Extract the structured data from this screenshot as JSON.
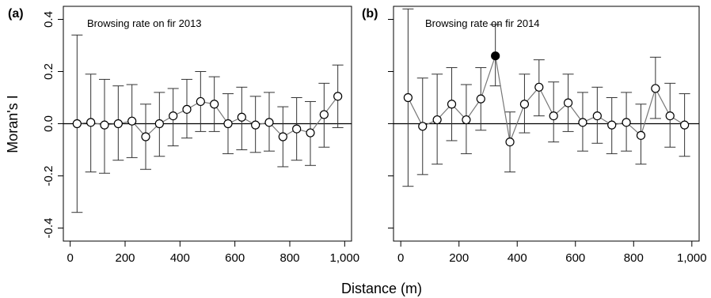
{
  "figure": {
    "xlabel": "Distance (m)",
    "ylabel": "Moran's I"
  },
  "chart_data": [
    {
      "type": "line",
      "panel_label": "(a)",
      "title": "Browsing rate on fir 2013",
      "xlabel": "Distance (m)",
      "ylabel": "Moran's I",
      "xlim": [
        0,
        1000
      ],
      "ylim": [
        -0.45,
        0.45
      ],
      "x_ticks": [
        0,
        200,
        400,
        600,
        800,
        1000
      ],
      "x_tick_labels": [
        "0",
        "200",
        "400",
        "600",
        "800",
        "1,000"
      ],
      "y_ticks": [
        -0.4,
        -0.2,
        0.0,
        0.2,
        0.4
      ],
      "y_tick_labels": [
        "-0.4",
        "-0.2",
        "0.0",
        "0.2",
        "0.4"
      ],
      "reference_line": 0,
      "grid": false,
      "series": [
        {
          "x": [
            25,
            75,
            125,
            175,
            225,
            275,
            325,
            375,
            425,
            475,
            525,
            575,
            625,
            675,
            725,
            775,
            825,
            875,
            925,
            975
          ],
          "y": [
            0.0,
            0.005,
            -0.005,
            0.0,
            0.01,
            -0.05,
            0.0,
            0.03,
            0.055,
            0.085,
            0.075,
            0.0,
            0.025,
            -0.005,
            0.005,
            -0.05,
            -0.02,
            -0.035,
            0.035,
            0.105
          ],
          "lower": [
            -0.34,
            -0.185,
            -0.19,
            -0.14,
            -0.13,
            -0.175,
            -0.125,
            -0.085,
            -0.055,
            -0.03,
            -0.03,
            -0.115,
            -0.1,
            -0.11,
            -0.105,
            -0.165,
            -0.14,
            -0.16,
            -0.09,
            -0.015
          ],
          "upper": [
            0.34,
            0.19,
            0.17,
            0.145,
            0.15,
            0.075,
            0.12,
            0.135,
            0.17,
            0.2,
            0.18,
            0.115,
            0.14,
            0.105,
            0.12,
            0.065,
            0.1,
            0.085,
            0.155,
            0.225
          ],
          "significant": [
            false,
            false,
            false,
            false,
            false,
            false,
            false,
            false,
            false,
            false,
            false,
            false,
            false,
            false,
            false,
            false,
            false,
            false,
            false,
            false
          ]
        }
      ]
    },
    {
      "type": "line",
      "panel_label": "(b)",
      "title": "Browsing rate on fir 2014",
      "xlabel": "Distance (m)",
      "ylabel": "",
      "xlim": [
        0,
        1000
      ],
      "ylim": [
        -0.45,
        0.45
      ],
      "x_ticks": [
        0,
        200,
        400,
        600,
        800,
        1000
      ],
      "x_tick_labels": [
        "0",
        "200",
        "400",
        "600",
        "800",
        "1,000"
      ],
      "y_ticks": [
        -0.4,
        -0.2,
        0.0,
        0.2,
        0.4
      ],
      "reference_line": 0,
      "grid": false,
      "series": [
        {
          "x": [
            25,
            75,
            125,
            175,
            225,
            275,
            325,
            375,
            425,
            475,
            525,
            575,
            625,
            675,
            725,
            775,
            825,
            875,
            925,
            975
          ],
          "y": [
            0.1,
            -0.01,
            0.015,
            0.075,
            0.015,
            0.095,
            0.26,
            -0.07,
            0.075,
            0.14,
            0.03,
            0.08,
            0.005,
            0.03,
            -0.005,
            0.005,
            -0.045,
            0.135,
            0.03,
            -0.005
          ],
          "lower": [
            -0.24,
            -0.195,
            -0.155,
            -0.065,
            -0.115,
            -0.025,
            0.145,
            -0.185,
            -0.035,
            0.03,
            -0.07,
            -0.03,
            -0.105,
            -0.075,
            -0.115,
            -0.105,
            -0.155,
            0.02,
            -0.09,
            -0.125
          ],
          "upper": [
            0.44,
            0.175,
            0.19,
            0.215,
            0.15,
            0.215,
            0.38,
            0.045,
            0.19,
            0.245,
            0.16,
            0.19,
            0.12,
            0.14,
            0.1,
            0.12,
            0.075,
            0.255,
            0.155,
            0.115
          ],
          "significant": [
            false,
            false,
            false,
            false,
            false,
            false,
            true,
            false,
            false,
            false,
            false,
            false,
            false,
            false,
            false,
            false,
            false,
            false,
            false,
            false
          ]
        }
      ]
    }
  ]
}
